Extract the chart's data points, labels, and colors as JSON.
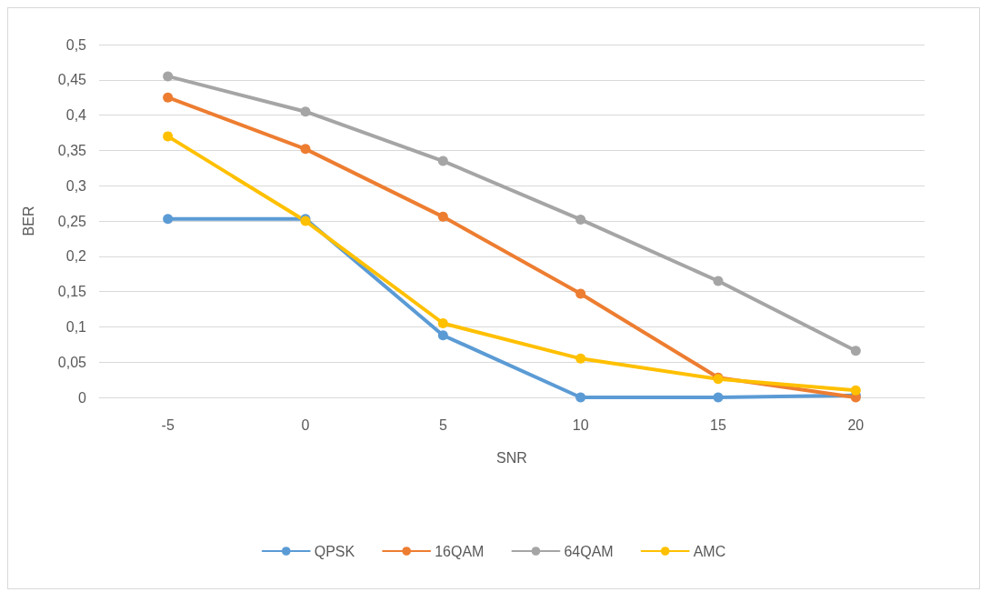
{
  "chart_data": {
    "type": "line",
    "xlabel": "SNR",
    "ylabel": "BER",
    "categories": [
      "-5",
      "0",
      "5",
      "10",
      "15",
      "20"
    ],
    "series": [
      {
        "name": "QPSK",
        "color": "#5b9bd5",
        "values": [
          0.253,
          0.253,
          0.088,
          0,
          0,
          0.003
        ]
      },
      {
        "name": "16QAM",
        "color": "#ed7d31",
        "values": [
          0.425,
          0.352,
          0.256,
          0.147,
          0.028,
          0
        ]
      },
      {
        "name": "64QAM",
        "color": "#a5a5a5",
        "values": [
          0.455,
          0.405,
          0.335,
          0.252,
          0.165,
          0.066
        ]
      },
      {
        "name": "AMC",
        "color": "#ffc000",
        "values": [
          0.37,
          0.25,
          0.105,
          0.055,
          0.026,
          0.01
        ]
      }
    ],
    "ylim": [
      0,
      0.5
    ],
    "yticks": [
      {
        "value": 0,
        "label": "0"
      },
      {
        "value": 0.05,
        "label": "0,05"
      },
      {
        "value": 0.1,
        "label": "0,1"
      },
      {
        "value": 0.15,
        "label": "0,15"
      },
      {
        "value": 0.2,
        "label": "0,2"
      },
      {
        "value": 0.25,
        "label": "0,25"
      },
      {
        "value": 0.3,
        "label": "0,3"
      },
      {
        "value": 0.35,
        "label": "0,35"
      },
      {
        "value": 0.4,
        "label": "0,4"
      },
      {
        "value": 0.45,
        "label": "0,45"
      },
      {
        "value": 0.5,
        "label": "0,5"
      }
    ],
    "grid": "y",
    "legend": "bottom",
    "marker": "circle",
    "line_style": "solid"
  }
}
